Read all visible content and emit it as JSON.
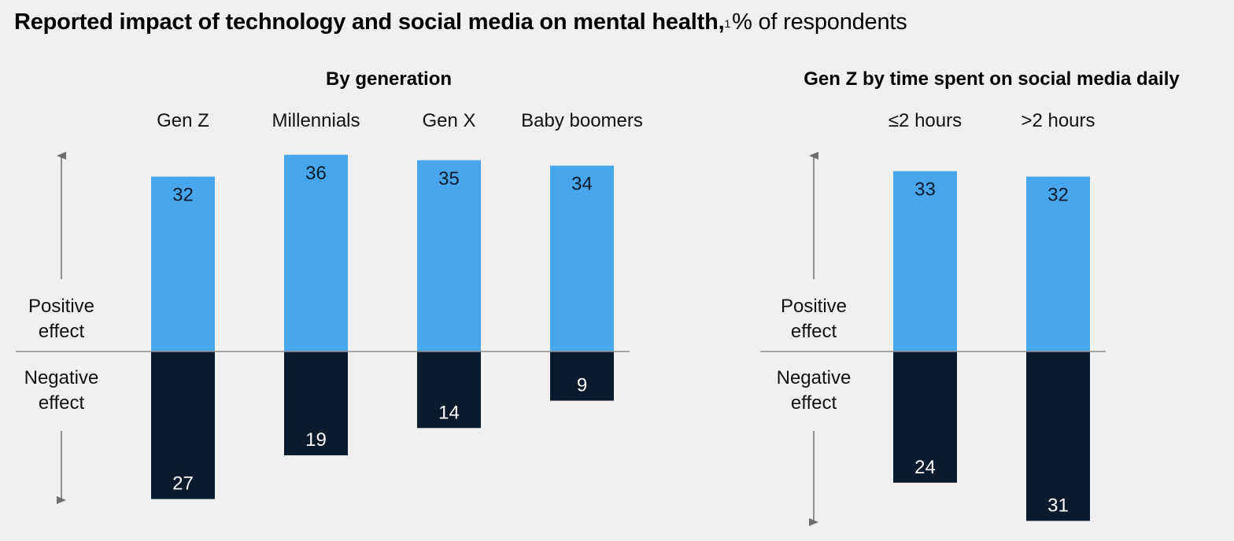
{
  "title": {
    "bold": "Reported impact of technology and social media on mental health,",
    "footnote": "1",
    "unit": "% of respondents"
  },
  "labels": {
    "positive_line1": "Positive",
    "positive_line2": "effect",
    "negative_line1": "Negative",
    "negative_line2": "effect"
  },
  "colors": {
    "positive": "#48a6ec",
    "negative": "#0b1b2e",
    "baseline": "#8c8c8c",
    "arrow": "#6e6e6e"
  },
  "chart_data": [
    {
      "type": "bar",
      "title": "By generation",
      "categories": [
        "Gen Z",
        "Millennials",
        "Gen X",
        "Baby boomers"
      ],
      "series": [
        {
          "name": "Positive effect",
          "values": [
            32,
            36,
            35,
            34
          ]
        },
        {
          "name": "Negative effect",
          "values": [
            27,
            19,
            14,
            9
          ]
        }
      ]
    },
    {
      "type": "bar",
      "title": "Gen Z by time spent on social media daily",
      "categories": [
        "≤2 hours",
        ">2 hours"
      ],
      "series": [
        {
          "name": "Positive effect",
          "values": [
            33,
            32
          ]
        },
        {
          "name": "Negative effect",
          "values": [
            24,
            31
          ]
        }
      ]
    }
  ]
}
